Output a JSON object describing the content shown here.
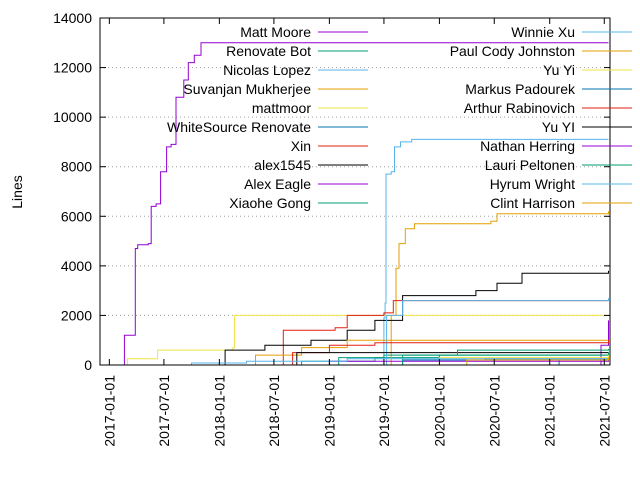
{
  "chart_data": {
    "type": "line",
    "title": "",
    "xlabel": "",
    "ylabel": "Lines",
    "ylim": [
      0,
      14000
    ],
    "xlim": [
      "2016-12-01",
      "2021-07-20"
    ],
    "grid": "horizontal dotted",
    "legend_position": "top, two columns inside plot",
    "y_ticks": [
      "0",
      "2000",
      "4000",
      "6000",
      "8000",
      "10000",
      "12000",
      "14000"
    ],
    "x_ticks": [
      "2017-01-01",
      "2017-07-01",
      "2018-01-01",
      "2018-07-01",
      "2019-01-01",
      "2019-07-01",
      "2020-01-01",
      "2020-07-01",
      "2021-01-01",
      "2021-07-01"
    ],
    "series": [
      {
        "name": "Matt Moore",
        "color": "#9400d3",
        "points": [
          [
            "2017-02-10",
            0
          ],
          [
            "2017-02-20",
            1200
          ],
          [
            "2017-03-25",
            1200
          ],
          [
            "2017-03-28",
            4700
          ],
          [
            "2017-04-05",
            4850
          ],
          [
            "2017-05-10",
            4900
          ],
          [
            "2017-05-20",
            6400
          ],
          [
            "2017-06-05",
            6500
          ],
          [
            "2017-06-20",
            7800
          ],
          [
            "2017-07-10",
            8800
          ],
          [
            "2017-07-25",
            8900
          ],
          [
            "2017-08-10",
            10800
          ],
          [
            "2017-09-05",
            11500
          ],
          [
            "2017-09-20",
            12200
          ],
          [
            "2017-10-10",
            12500
          ],
          [
            "2017-11-01",
            13000
          ],
          [
            "2021-07-15",
            13000
          ]
        ]
      },
      {
        "name": "Renovate Bot",
        "color": "#009e73",
        "points": [
          [
            "2018-06-01",
            0
          ],
          [
            "2018-10-01",
            150
          ],
          [
            "2019-06-01",
            300
          ],
          [
            "2020-01-01",
            400
          ],
          [
            "2021-07-15",
            450
          ]
        ]
      },
      {
        "name": "Nicolas Lopez",
        "color": "#56b4e9",
        "points": [
          [
            "2019-06-25",
            0
          ],
          [
            "2019-07-01",
            1900
          ],
          [
            "2019-07-05",
            2500
          ],
          [
            "2019-07-08",
            7700
          ],
          [
            "2019-07-25",
            7800
          ],
          [
            "2019-08-05",
            8800
          ],
          [
            "2019-08-25",
            9000
          ],
          [
            "2019-10-01",
            9100
          ],
          [
            "2021-07-15",
            9100
          ]
        ]
      },
      {
        "name": "Suvanjan Mukherjee",
        "color": "#e69f00",
        "points": [
          [
            "2019-07-20",
            0
          ],
          [
            "2019-07-25",
            2000
          ],
          [
            "2019-08-10",
            3900
          ],
          [
            "2019-08-20",
            4900
          ],
          [
            "2019-09-10",
            5500
          ],
          [
            "2019-10-10",
            5700
          ],
          [
            "2020-06-20",
            5800
          ],
          [
            "2020-07-10",
            6100
          ],
          [
            "2021-07-15",
            6200
          ]
        ]
      },
      {
        "name": "mattmoor",
        "color": "#f0e442",
        "points": [
          [
            "2017-03-01",
            0
          ],
          [
            "2017-03-02",
            250
          ],
          [
            "2017-06-10",
            600
          ],
          [
            "2018-02-15",
            700
          ],
          [
            "2018-02-20",
            2000
          ],
          [
            "2019-01-01",
            2000
          ],
          [
            "2021-07-15",
            2000
          ]
        ]
      },
      {
        "name": "WhiteSource Renovate",
        "color": "#0072b2",
        "points": [
          [
            "2019-07-01",
            0
          ],
          [
            "2019-09-01",
            200
          ],
          [
            "2020-06-01",
            250
          ],
          [
            "2021-07-15",
            300
          ]
        ]
      },
      {
        "name": "Xin",
        "color": "#e51e10",
        "points": [
          [
            "2018-07-20",
            0
          ],
          [
            "2018-08-01",
            1400
          ],
          [
            "2019-01-20",
            1500
          ],
          [
            "2019-03-01",
            2000
          ],
          [
            "2019-07-01",
            2100
          ],
          [
            "2019-08-01",
            2600
          ],
          [
            "2021-07-15",
            2600
          ]
        ]
      },
      {
        "name": "alex1545",
        "color": "#000000",
        "points": [
          [
            "2018-01-15",
            0
          ],
          [
            "2018-01-20",
            600
          ],
          [
            "2018-06-01",
            800
          ],
          [
            "2018-11-01",
            1000
          ],
          [
            "2019-03-01",
            1400
          ],
          [
            "2019-06-01",
            1800
          ],
          [
            "2019-09-01",
            2800
          ],
          [
            "2020-05-01",
            3000
          ],
          [
            "2020-07-10",
            3300
          ],
          [
            "2020-10-01",
            3700
          ],
          [
            "2021-07-15",
            3800
          ]
        ]
      },
      {
        "name": "Alex Eagle",
        "color": "#9400d3",
        "points": [
          [
            "2021-06-15",
            0
          ],
          [
            "2021-06-20",
            800
          ],
          [
            "2021-07-15",
            1800
          ]
        ]
      },
      {
        "name": "Xiaohe Gong",
        "color": "#009e73",
        "points": [
          [
            "2019-01-01",
            0
          ],
          [
            "2019-02-01",
            300
          ],
          [
            "2019-07-01",
            400
          ],
          [
            "2021-07-15",
            500
          ]
        ]
      },
      {
        "name": "Winnie Xu",
        "color": "#56b4e9",
        "points": [
          [
            "2019-07-01",
            0
          ],
          [
            "2019-07-10",
            2000
          ],
          [
            "2019-09-01",
            2600
          ],
          [
            "2021-07-15",
            2700
          ]
        ]
      },
      {
        "name": "Paul Cody Johnston",
        "color": "#e69f00",
        "points": [
          [
            "2018-04-01",
            0
          ],
          [
            "2018-05-01",
            400
          ],
          [
            "2018-10-01",
            700
          ],
          [
            "2019-03-01",
            1000
          ],
          [
            "2021-07-15",
            1000
          ]
        ]
      },
      {
        "name": "Yu Yi",
        "color": "#f0e442",
        "points": [
          [
            "2019-08-01",
            0
          ],
          [
            "2020-01-01",
            300
          ],
          [
            "2021-07-15",
            400
          ]
        ]
      },
      {
        "name": "Markus Padourek",
        "color": "#0072b2",
        "points": [
          [
            "2021-01-15",
            0
          ],
          [
            "2021-02-01",
            200
          ],
          [
            "2021-07-15",
            250
          ]
        ]
      },
      {
        "name": "Arthur Rabinovich",
        "color": "#e51e10",
        "points": [
          [
            "2018-08-01",
            0
          ],
          [
            "2018-09-01",
            500
          ],
          [
            "2019-01-01",
            800
          ],
          [
            "2019-06-01",
            900
          ],
          [
            "2021-07-15",
            1000
          ]
        ]
      },
      {
        "name": "Yu YI",
        "color": "#000000",
        "points": [
          [
            "2018-09-01",
            0
          ],
          [
            "2018-09-15",
            500
          ],
          [
            "2021-07-15",
            500
          ]
        ]
      },
      {
        "name": "Nathan Herring",
        "color": "#9400d3",
        "points": [
          [
            "2018-10-01",
            0
          ],
          [
            "2019-01-01",
            150
          ],
          [
            "2021-07-15",
            200
          ]
        ]
      },
      {
        "name": "Lauri Peltonen",
        "color": "#009e73",
        "points": [
          [
            "2018-11-01",
            0
          ],
          [
            "2019-09-01",
            400
          ],
          [
            "2020-03-01",
            600
          ],
          [
            "2021-07-15",
            650
          ]
        ]
      },
      {
        "name": "Hyrum Wright",
        "color": "#56b4e9",
        "points": [
          [
            "2017-09-01",
            0
          ],
          [
            "2017-10-01",
            80
          ],
          [
            "2018-04-01",
            150
          ],
          [
            "2019-03-01",
            250
          ],
          [
            "2021-07-15",
            300
          ]
        ]
      },
      {
        "name": "Clint Harrison",
        "color": "#e69f00",
        "points": [
          [
            "2019-08-01",
            0
          ],
          [
            "2020-04-01",
            200
          ],
          [
            "2021-07-15",
            300
          ]
        ]
      }
    ]
  }
}
